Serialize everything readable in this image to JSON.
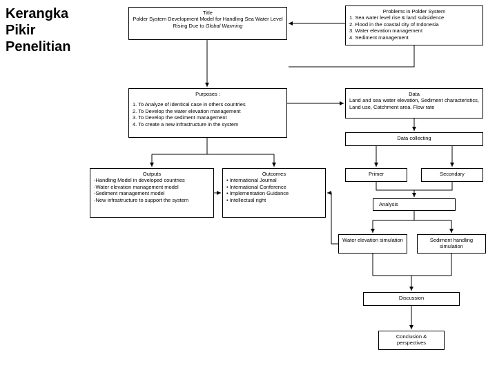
{
  "heading": "Kerangka\nPikir\nPenelitian",
  "titleBox": {
    "label": "Title",
    "text": "Polder System Development Model for Handling Sea Water Level Rising Due to ",
    "italic": "Global Warming"
  },
  "problemsBox": {
    "label": "Problems in Polder System",
    "i1": "1.   Sea water level rise & land subsidence",
    "i2": "2.   Flood in the coastal city of Indonesia",
    "i3": "3.   Water elevation management",
    "i4": "4.   Sediment management"
  },
  "purposesBox": {
    "label": "Purposes :",
    "i1": "1. To Analyze of identical case in others countries",
    "i2": "2. To Develop the water elevation management",
    "i3": "3. To Develop the sediment management",
    "i4": "4. To create a new infrastructure in the system"
  },
  "dataBox": {
    "label": "Data",
    "text": "Land and sea water elevation, Sediment characteristics, Land use, Catchment area. Flow rate"
  },
  "dataCollecting": {
    "label": "Data collecting"
  },
  "outputsBox": {
    "label": "Outputs",
    "i1": "-Handling Model in developed countries",
    "i2": "-Water elevation management model",
    "i3": "-Sediment management model",
    "i4": "-New infrastructure to support the system"
  },
  "outcomesBox": {
    "label": "Outcomes",
    "i1": "• International Journal",
    "i2": "• International Conference",
    "i3": "• Implementation Guidance",
    "i4": "• Intellectual right"
  },
  "primer": {
    "label": "Primer"
  },
  "secondary": {
    "label": "Secondary"
  },
  "analysis": {
    "label": "Analysis"
  },
  "waterSim": {
    "label": "Water elevation simulation"
  },
  "sedimentSim": {
    "label": "Sediment handling simulation"
  },
  "discussion": {
    "label": "Discussion"
  },
  "conclusion": {
    "label1": "Conclusion &",
    "label2": "perspectives"
  },
  "style": {
    "stroke": "#000000",
    "strokeWidth": 1,
    "background": "#ffffff"
  }
}
